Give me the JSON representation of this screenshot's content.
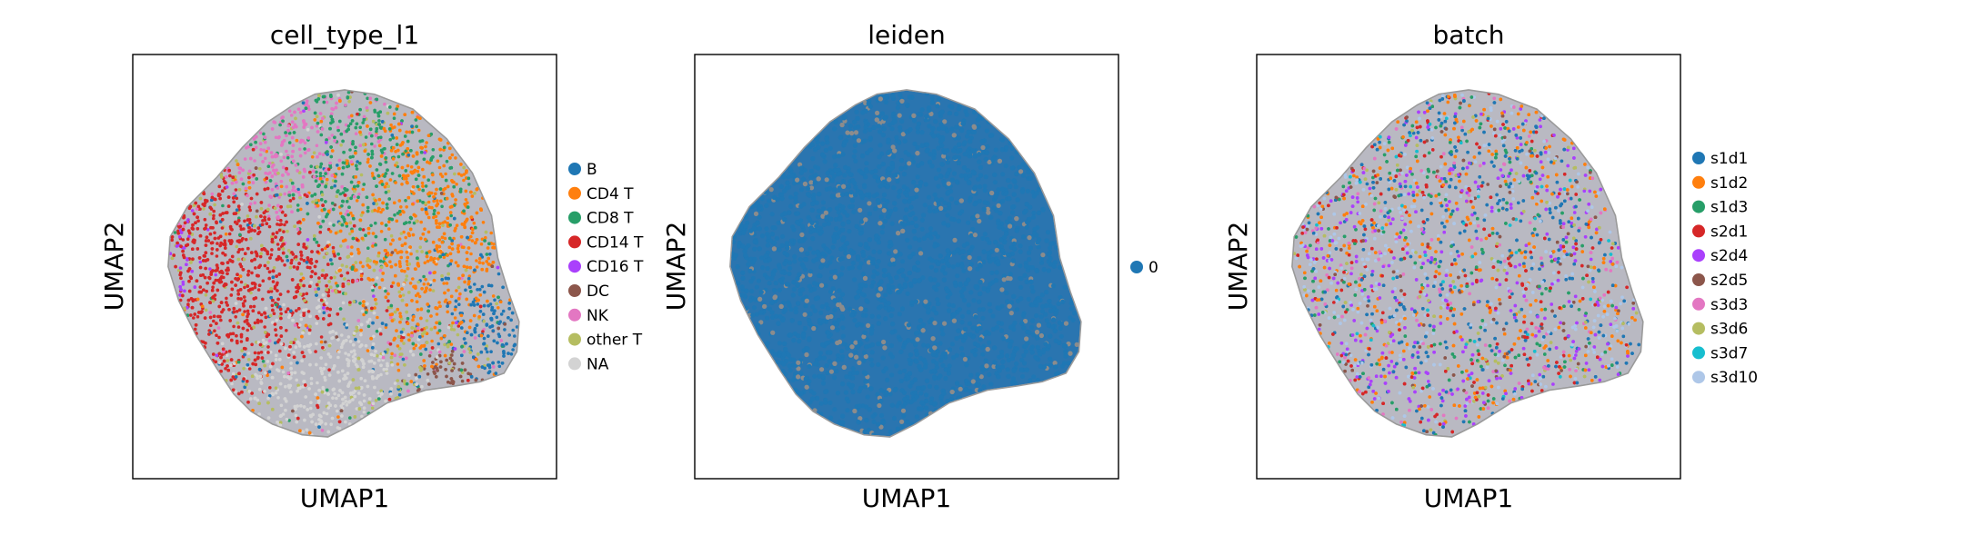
{
  "chart_data": [
    {
      "type": "scatter",
      "title": "cell_type_l1",
      "xlabel": "UMAP1",
      "ylabel": "UMAP2",
      "ticks": "none",
      "legend_placement": "right",
      "series": [
        {
          "name": "B",
          "color": "#1f77b4"
        },
        {
          "name": "CD4 T",
          "color": "#ff7f0e"
        },
        {
          "name": "CD8 T",
          "color": "#279e68"
        },
        {
          "name": "CD14 T",
          "color": "#d62728"
        },
        {
          "name": "CD16 T",
          "color": "#aa40fc"
        },
        {
          "name": "DC",
          "color": "#8c564b"
        },
        {
          "name": "NK",
          "color": "#e377c2"
        },
        {
          "name": "other T",
          "color": "#b5bd61"
        },
        {
          "name": "NA",
          "color": "#d3d3d3"
        }
      ]
    },
    {
      "type": "scatter",
      "title": "leiden",
      "xlabel": "UMAP1",
      "ylabel": "UMAP2",
      "ticks": "none",
      "legend_placement": "right",
      "series": [
        {
          "name": "0",
          "color": "#1f77b4"
        }
      ]
    },
    {
      "type": "scatter",
      "title": "batch",
      "xlabel": "UMAP1",
      "ylabel": "UMAP2",
      "ticks": "none",
      "legend_placement": "right",
      "series": [
        {
          "name": "s1d1",
          "color": "#1f77b4"
        },
        {
          "name": "s1d2",
          "color": "#ff7f0e"
        },
        {
          "name": "s1d3",
          "color": "#279e68"
        },
        {
          "name": "s2d1",
          "color": "#d62728"
        },
        {
          "name": "s2d4",
          "color": "#aa40fc"
        },
        {
          "name": "s2d5",
          "color": "#8c564b"
        },
        {
          "name": "s3d3",
          "color": "#e377c2"
        },
        {
          "name": "s3d6",
          "color": "#b5bd61"
        },
        {
          "name": "s3d7",
          "color": "#17becf"
        },
        {
          "name": "s3d10",
          "color": "#aec7e8"
        }
      ]
    }
  ]
}
